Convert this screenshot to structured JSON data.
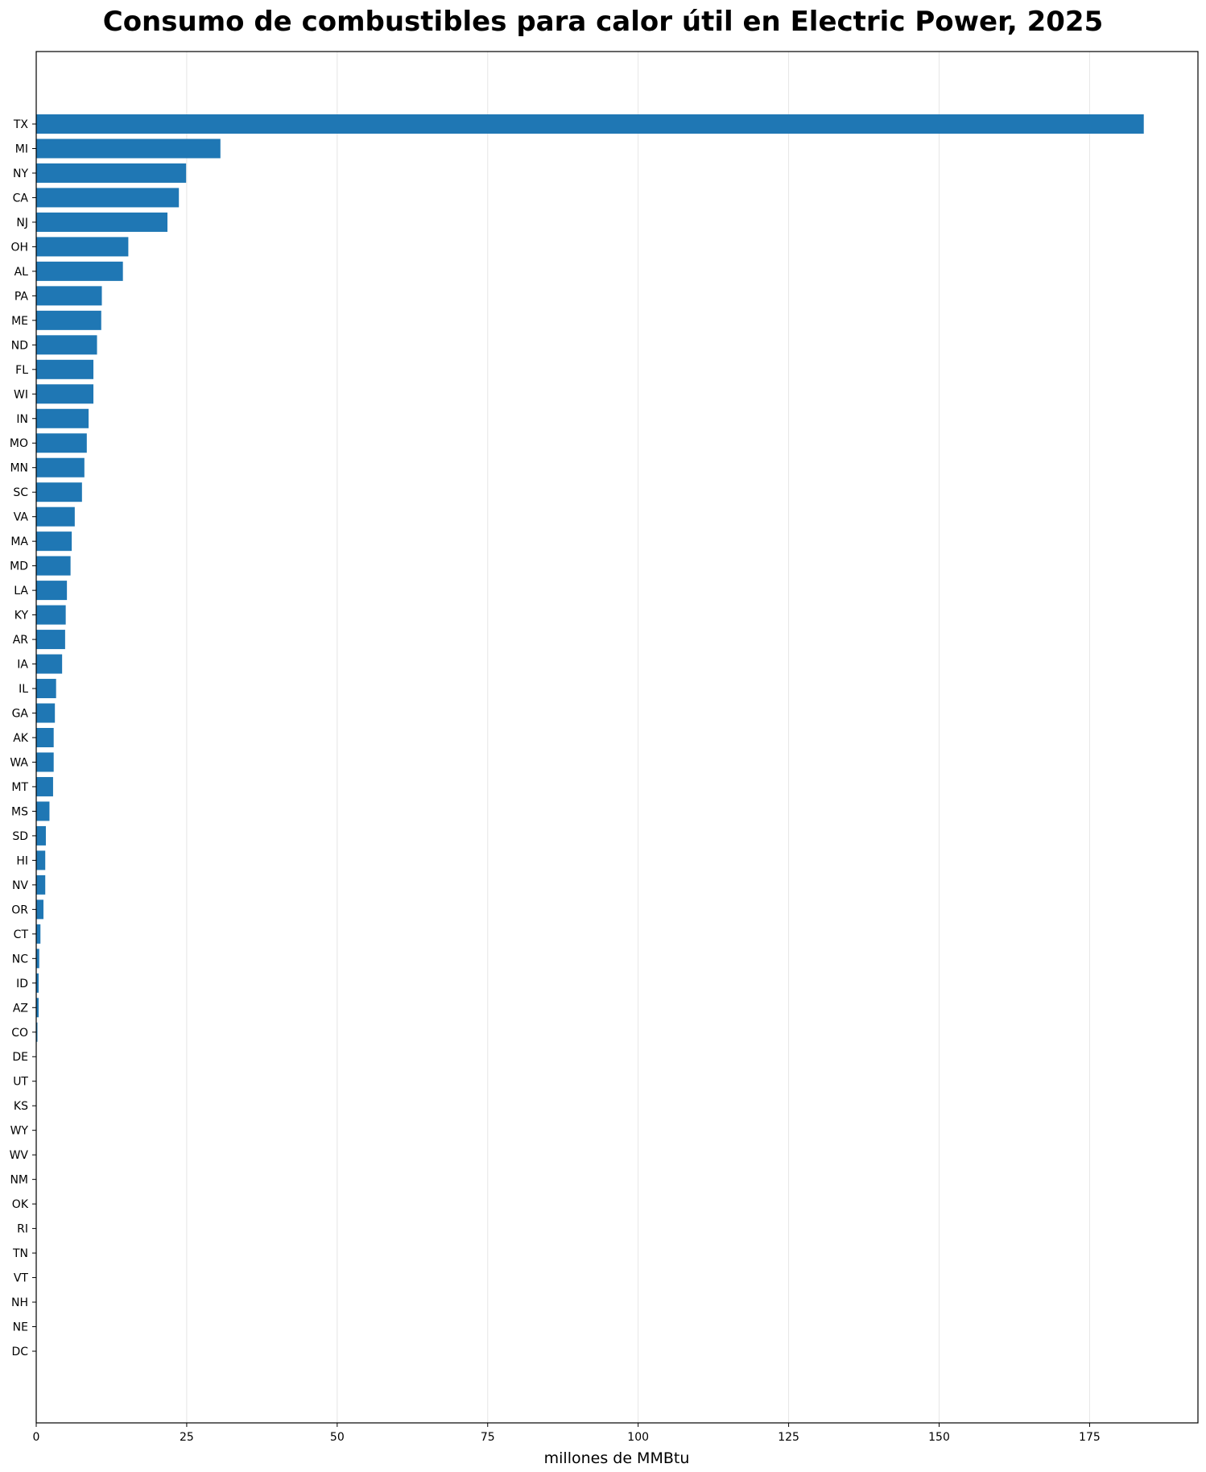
{
  "chart_data": {
    "type": "bar",
    "orientation": "horizontal",
    "title": "Consumo de combustibles para calor útil en Electric Power, 2025",
    "xlabel": "millones de MMBtu",
    "ylabel": "",
    "xlim": [
      0,
      193
    ],
    "xticks": [
      0,
      25,
      50,
      75,
      100,
      125,
      150,
      175
    ],
    "grid": "vertical",
    "bar_color": "#1f77b4",
    "categories": [
      "TX",
      "MI",
      "NY",
      "CA",
      "NJ",
      "OH",
      "AL",
      "PA",
      "ME",
      "ND",
      "FL",
      "WI",
      "IN",
      "MO",
      "MN",
      "SC",
      "VA",
      "MA",
      "MD",
      "LA",
      "KY",
      "AR",
      "IA",
      "IL",
      "GA",
      "AK",
      "WA",
      "MT",
      "MS",
      "SD",
      "HI",
      "NV",
      "OR",
      "CT",
      "NC",
      "ID",
      "AZ",
      "CO",
      "DE",
      "UT",
      "KS",
      "WY",
      "WV",
      "NM",
      "OK",
      "RI",
      "TN",
      "VT",
      "NH",
      "NE",
      "DC"
    ],
    "values": [
      184,
      30.6,
      24.9,
      23.7,
      21.8,
      15.3,
      14.4,
      10.9,
      10.8,
      10.1,
      9.5,
      9.5,
      8.7,
      8.4,
      8.0,
      7.6,
      6.4,
      5.9,
      5.7,
      5.1,
      4.9,
      4.8,
      4.3,
      3.3,
      3.1,
      2.9,
      2.9,
      2.8,
      2.2,
      1.6,
      1.5,
      1.5,
      1.2,
      0.7,
      0.5,
      0.4,
      0.4,
      0.2,
      0.05,
      0.03,
      0.02,
      0.01,
      0.01,
      0.01,
      0.01,
      0.0,
      0.0,
      0.0,
      0.0,
      0.0,
      0.0
    ]
  }
}
